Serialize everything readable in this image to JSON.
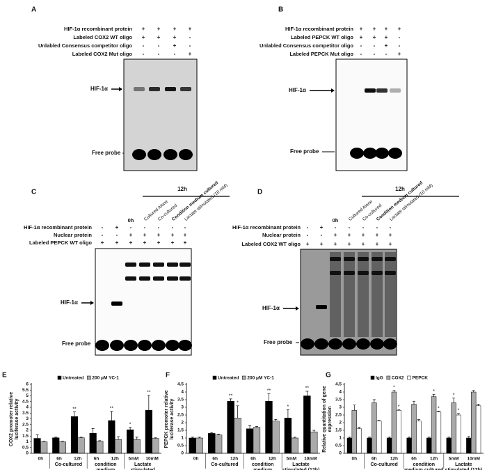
{
  "gels": [
    {
      "label": "A",
      "rows": [
        {
          "label": "HIF-1α recombinant protein",
          "marks": [
            "+",
            "+",
            "+",
            "+"
          ]
        },
        {
          "label": "Labeled COX2 WT oligo",
          "marks": [
            "+",
            "+",
            "+",
            "-"
          ]
        },
        {
          "label": "Unlabled Consensus competitor oligo",
          "marks": [
            "-",
            "-",
            "+",
            "-"
          ]
        },
        {
          "label": "Labeled COX2 Mut oligo",
          "marks": [
            "-",
            "-",
            "-",
            "+"
          ]
        }
      ],
      "band_labels": [
        "HIF-1α",
        "Free probe"
      ]
    },
    {
      "label": "B",
      "rows": [
        {
          "label": "HIF-1α recombinant protein",
          "marks": [
            "+",
            "+",
            "+",
            "+"
          ]
        },
        {
          "label": "Labeled PEPCK WT oligo",
          "marks": [
            "+",
            "+",
            "+",
            "-"
          ]
        },
        {
          "label": "Unlabled Consensus competitor oligo",
          "marks": [
            "-",
            "-",
            "+",
            "-"
          ]
        },
        {
          "label": "Labeled PEPCK Mut oligo",
          "marks": [
            "-",
            "-",
            "-",
            "+"
          ]
        }
      ],
      "band_labels": [
        "HIF-1α",
        "Free probe"
      ]
    },
    {
      "label": "C",
      "header": "12h",
      "lane_labels": [
        "0h",
        "Cultured Alone",
        "Co-cultured",
        "Condition medium cultured",
        "Lactate stimulated (10 mM)"
      ],
      "rows": [
        {
          "label": "HIF-1α recombinant protein",
          "marks": [
            "-",
            "+",
            "-",
            "-",
            "-",
            "-",
            "-"
          ]
        },
        {
          "label": "Nuclear protein",
          "marks": [
            "-",
            "-",
            "+",
            "+",
            "+",
            "+",
            "+"
          ]
        },
        {
          "label": "Labeled PEPCK WT oligo",
          "marks": [
            "+",
            "+",
            "+",
            "+",
            "+",
            "+",
            "+"
          ]
        }
      ],
      "band_labels": [
        "HIF-1α",
        "Free probe"
      ]
    },
    {
      "label": "D",
      "header": "12h",
      "lane_labels": [
        "0h",
        "Cultured Alone",
        "Co-cultured",
        "Condition medium cultured",
        "Lactate stimulated (10 mM)"
      ],
      "rows": [
        {
          "label": "HIF-1α recombinant protein",
          "marks": [
            "-",
            "+",
            "-",
            "-",
            "-",
            "-",
            "-"
          ]
        },
        {
          "label": "Nuclear protein",
          "marks": [
            "-",
            "-",
            "+",
            "+",
            "+",
            "+",
            "+"
          ]
        },
        {
          "label": "Labeled COX2 WT oligo",
          "marks": [
            "+",
            "+",
            "+",
            "+",
            "+",
            "+",
            "+"
          ]
        }
      ],
      "band_labels": [
        "HIF-1α",
        "Free probe"
      ]
    }
  ],
  "chart_data": [
    {
      "type": "bar",
      "panel_label": "E",
      "ylabel": "COX2 promoter relative luciferase activity",
      "categories": [
        "0h",
        "6h",
        "12h",
        "6h",
        "12h",
        "5mM",
        "10mM"
      ],
      "groups": [
        "Co-cultured",
        "condition medium cultured",
        "Lactate stimulated (12h)"
      ],
      "series": [
        {
          "name": "Untreated",
          "color": "#000000",
          "values": [
            1.3,
            1.35,
            3.2,
            1.75,
            2.85,
            2.05,
            3.75
          ],
          "errors": [
            0.3,
            0.05,
            0.4,
            0.4,
            0.8,
            0.2,
            1.3
          ],
          "significance": [
            null,
            null,
            "**",
            null,
            "**",
            "*",
            "**"
          ]
        },
        {
          "name": "200 μM YC-1",
          "color": "#aaaaaa",
          "values": [
            1.0,
            1.0,
            1.35,
            1.05,
            1.2,
            1.2,
            1.3
          ],
          "errors": [
            0.05,
            0.05,
            0.05,
            0.05,
            0.25,
            0.2,
            0.05
          ],
          "significance": [
            null,
            null,
            null,
            null,
            null,
            null,
            null
          ]
        }
      ],
      "ylim": [
        0,
        6
      ],
      "yticks": [
        0,
        0.5,
        1,
        1.5,
        2,
        2.5,
        3,
        3.5,
        4,
        4.5,
        5,
        5.5,
        6
      ]
    },
    {
      "type": "bar",
      "panel_label": "F",
      "ylabel": "PEPCK promoter relative luciferase activity",
      "categories": [
        "0h",
        "6h",
        "12h",
        "6h",
        "12h",
        "5mM",
        "10mM"
      ],
      "groups": [
        "Co-cultured",
        "condition medium cultured",
        "Lactate stimulated (12h)"
      ],
      "series": [
        {
          "name": "Untreated",
          "color": "#000000",
          "values": [
            1.0,
            1.3,
            3.4,
            1.6,
            3.4,
            2.3,
            3.75
          ],
          "errors": [
            0.05,
            0.05,
            0.15,
            0.2,
            0.5,
            0.55,
            0.3
          ],
          "significance": [
            null,
            null,
            "**",
            null,
            "**",
            "*",
            "**"
          ]
        },
        {
          "name": "200 μM YC-1",
          "color": "#aaaaaa",
          "values": [
            1.0,
            1.2,
            2.3,
            1.7,
            2.1,
            1.0,
            1.4
          ],
          "errors": [
            0.05,
            0.05,
            0.8,
            0.05,
            0.1,
            0.05,
            0.1
          ],
          "significance": [
            null,
            null,
            "*",
            null,
            null,
            null,
            null
          ]
        }
      ],
      "ylim": [
        0,
        4.5
      ],
      "yticks": [
        0,
        0.5,
        1,
        1.5,
        2,
        2.5,
        3,
        3.5,
        4,
        4.5
      ]
    },
    {
      "type": "bar",
      "panel_label": "G",
      "ylabel": "Relative quantitation of gene expression",
      "categories": [
        "0h",
        "6h",
        "12h",
        "6h",
        "12h",
        "5mM",
        "10mM"
      ],
      "groups": [
        "Co-cultured",
        "condition medium cultured",
        "Lactate stimulated (12h)"
      ],
      "series": [
        {
          "name": "IgG",
          "color": "#000000",
          "values": [
            1,
            1,
            1,
            1,
            1,
            1,
            1
          ],
          "errors": [
            0.05,
            0.05,
            0.05,
            0.05,
            0.05,
            0.05,
            0.1
          ],
          "significance": [
            null,
            null,
            null,
            null,
            null,
            null,
            null
          ]
        },
        {
          "name": "COX2",
          "color": "#aaaaaa",
          "values": [
            2.8,
            3.3,
            4.0,
            3.2,
            3.7,
            3.3,
            4.0
          ],
          "errors": [
            0.35,
            0.2,
            0.1,
            0.2,
            0.15,
            0.3,
            0.1
          ],
          "significance": [
            null,
            null,
            "*",
            null,
            "*",
            "*",
            null
          ]
        },
        {
          "name": "PEPCK",
          "color": "#ffffff",
          "values": [
            1.6,
            2.1,
            2.8,
            2.1,
            2.7,
            2.5,
            3.1
          ],
          "errors": [
            0.1,
            0.05,
            0.05,
            0.1,
            0.05,
            0.1,
            0.1
          ],
          "significance": [
            null,
            null,
            "*",
            null,
            "*",
            "*",
            null
          ]
        }
      ],
      "ylim": [
        0,
        4.5
      ],
      "yticks": [
        0,
        0.5,
        1,
        1.5,
        2,
        2.5,
        3,
        3.5,
        4,
        4.5
      ]
    }
  ]
}
